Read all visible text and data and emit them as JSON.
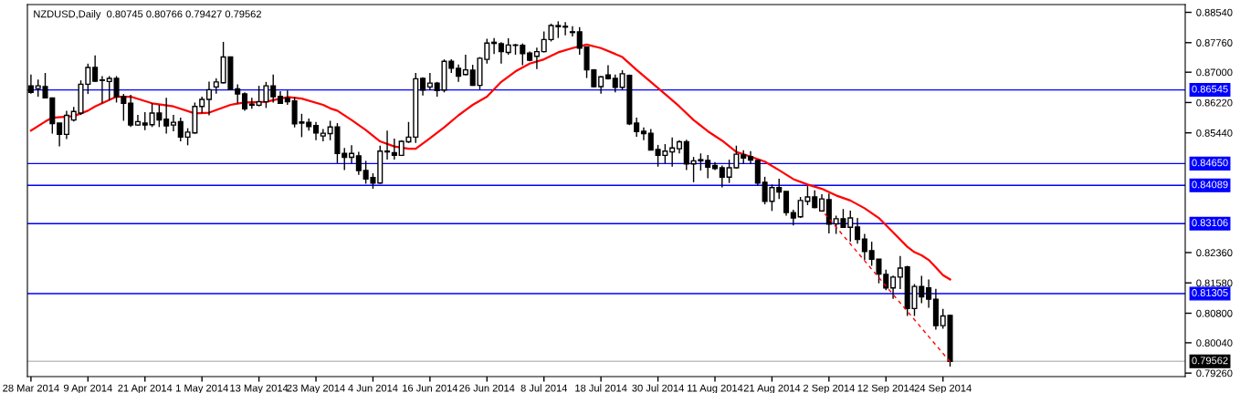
{
  "chart_data": {
    "type": "candlestick",
    "title": "NZDUSD,Daily  0.80745 0.80766 0.79427 0.79562",
    "categories": [
      "28 Mar 2014",
      null,
      null,
      null,
      null,
      null,
      null,
      null,
      "9 Apr 2014",
      null,
      null,
      null,
      null,
      null,
      null,
      null,
      "21 Apr 2014",
      null,
      null,
      null,
      null,
      null,
      null,
      null,
      "1 May 2014",
      null,
      null,
      null,
      null,
      null,
      null,
      null,
      "13 May 2014",
      null,
      null,
      null,
      null,
      null,
      null,
      null,
      "23 May 2014",
      null,
      null,
      null,
      null,
      null,
      null,
      null,
      "4 Jun 2014",
      null,
      null,
      null,
      null,
      null,
      null,
      null,
      "16 Jun 2014",
      null,
      null,
      null,
      null,
      null,
      null,
      null,
      "26 Jun 2014",
      null,
      null,
      null,
      null,
      null,
      null,
      null,
      "8 Jul 2014",
      null,
      null,
      null,
      null,
      null,
      null,
      null,
      "18 Jul 2014",
      null,
      null,
      null,
      null,
      null,
      null,
      null,
      "30 Jul 2014",
      null,
      null,
      null,
      null,
      null,
      null,
      null,
      "11 Aug 2014",
      null,
      null,
      null,
      null,
      null,
      null,
      null,
      "21 Aug 2014",
      null,
      null,
      null,
      null,
      null,
      null,
      null,
      "2 Sep 2014",
      null,
      null,
      null,
      null,
      null,
      null,
      null,
      "12 Sep 2014",
      null,
      null,
      null,
      null,
      null,
      null,
      null,
      "24 Sep 2014",
      null
    ],
    "color": "#000000",
    "ohlc": [
      [
        0.8665,
        0.8694,
        0.8645,
        0.8648
      ],
      [
        0.8658,
        0.8681,
        0.8637,
        0.8665
      ],
      [
        0.8663,
        0.8698,
        0.8633,
        0.8634
      ],
      [
        0.8634,
        0.8634,
        0.8542,
        0.8568
      ],
      [
        0.8569,
        0.8569,
        0.8509,
        0.854
      ],
      [
        0.854,
        0.8601,
        0.8528,
        0.8589
      ],
      [
        0.8577,
        0.8611,
        0.8573,
        0.8599
      ],
      [
        0.8595,
        0.8679,
        0.859,
        0.8669
      ],
      [
        0.8669,
        0.8722,
        0.8644,
        0.8712
      ],
      [
        0.8712,
        0.8743,
        0.8675,
        0.8677
      ],
      [
        0.868,
        0.869,
        0.862,
        0.8679
      ],
      [
        0.8676,
        0.869,
        0.8628,
        0.8684
      ],
      [
        0.8684,
        0.869,
        0.8622,
        0.8637
      ],
      [
        0.8637,
        0.8644,
        0.8575,
        0.862
      ],
      [
        0.862,
        0.8642,
        0.8559,
        0.8564
      ],
      [
        0.8564,
        0.859,
        0.8562,
        0.8573
      ],
      [
        0.8569,
        0.8597,
        0.8551,
        0.8564
      ],
      [
        0.8565,
        0.862,
        0.8559,
        0.8595
      ],
      [
        0.8595,
        0.8616,
        0.8559,
        0.8577
      ],
      [
        0.8579,
        0.8634,
        0.8542,
        0.8562
      ],
      [
        0.8564,
        0.859,
        0.8548,
        0.8571
      ],
      [
        0.8573,
        0.8583,
        0.8522,
        0.8533
      ],
      [
        0.8533,
        0.8556,
        0.8512,
        0.8546
      ],
      [
        0.8544,
        0.8622,
        0.8542,
        0.8612
      ],
      [
        0.8612,
        0.8637,
        0.8595,
        0.863
      ],
      [
        0.863,
        0.8676,
        0.8589,
        0.8655
      ],
      [
        0.8662,
        0.8684,
        0.8645,
        0.8675
      ],
      [
        0.8673,
        0.8778,
        0.8671,
        0.8739
      ],
      [
        0.8739,
        0.874,
        0.8654,
        0.8655
      ],
      [
        0.8657,
        0.8669,
        0.862,
        0.8644
      ],
      [
        0.8644,
        0.8648,
        0.8601,
        0.8606
      ],
      [
        0.8618,
        0.8634,
        0.8606,
        0.8615
      ],
      [
        0.8615,
        0.8665,
        0.8612,
        0.8624
      ],
      [
        0.8624,
        0.8675,
        0.8608,
        0.8665
      ],
      [
        0.8665,
        0.8694,
        0.8622,
        0.8637
      ],
      [
        0.8638,
        0.8651,
        0.8619,
        0.862
      ],
      [
        0.8633,
        0.8653,
        0.8616,
        0.8624
      ],
      [
        0.8626,
        0.8636,
        0.8558,
        0.8567
      ],
      [
        0.8572,
        0.8593,
        0.8533,
        0.8569
      ],
      [
        0.8571,
        0.8581,
        0.855,
        0.856
      ],
      [
        0.8563,
        0.8572,
        0.8525,
        0.8544
      ],
      [
        0.8536,
        0.8554,
        0.8522,
        0.8543
      ],
      [
        0.8542,
        0.8575,
        0.8525,
        0.8559
      ],
      [
        0.8559,
        0.8569,
        0.8466,
        0.8491
      ],
      [
        0.8491,
        0.8505,
        0.8448,
        0.8481
      ],
      [
        0.8481,
        0.8512,
        0.8466,
        0.8491
      ],
      [
        0.8485,
        0.8495,
        0.8436,
        0.8447
      ],
      [
        0.8447,
        0.8472,
        0.8413,
        0.8425
      ],
      [
        0.8429,
        0.844,
        0.84,
        0.8415
      ],
      [
        0.8415,
        0.8511,
        0.8413,
        0.8497
      ],
      [
        0.8497,
        0.855,
        0.8475,
        0.8495
      ],
      [
        0.8493,
        0.8529,
        0.8475,
        0.8486
      ],
      [
        0.8486,
        0.8525,
        0.8485,
        0.8522
      ],
      [
        0.8521,
        0.8572,
        0.8518,
        0.8533
      ],
      [
        0.8533,
        0.8698,
        0.8518,
        0.8683
      ],
      [
        0.8684,
        0.8687,
        0.864,
        0.8654
      ],
      [
        0.8662,
        0.8698,
        0.8654,
        0.8672
      ],
      [
        0.8672,
        0.8675,
        0.8637,
        0.8653
      ],
      [
        0.8654,
        0.8733,
        0.8648,
        0.8728
      ],
      [
        0.8728,
        0.8733,
        0.8698,
        0.871
      ],
      [
        0.871,
        0.872,
        0.8675,
        0.869
      ],
      [
        0.8694,
        0.8745,
        0.8692,
        0.8706
      ],
      [
        0.8705,
        0.8719,
        0.8665,
        0.8666
      ],
      [
        0.8666,
        0.8739,
        0.8655,
        0.8736
      ],
      [
        0.8733,
        0.8786,
        0.8722,
        0.8775
      ],
      [
        0.8777,
        0.8788,
        0.8747,
        0.8774
      ],
      [
        0.8773,
        0.8777,
        0.8722,
        0.8753
      ],
      [
        0.8751,
        0.8787,
        0.8745,
        0.877
      ],
      [
        0.877,
        0.8773,
        0.8745,
        0.8769
      ],
      [
        0.8769,
        0.8774,
        0.8718,
        0.8748
      ],
      [
        0.8749,
        0.8753,
        0.8728,
        0.8731
      ],
      [
        0.8741,
        0.8763,
        0.8708,
        0.8753
      ],
      [
        0.8753,
        0.8805,
        0.8751,
        0.8784
      ],
      [
        0.8784,
        0.8825,
        0.8779,
        0.882
      ],
      [
        0.882,
        0.8831,
        0.8788,
        0.8817
      ],
      [
        0.8818,
        0.8829,
        0.8795,
        0.8816
      ],
      [
        0.8804,
        0.8818,
        0.8792,
        0.8802
      ],
      [
        0.8804,
        0.8816,
        0.8745,
        0.8762
      ],
      [
        0.8765,
        0.8765,
        0.8685,
        0.8706
      ],
      [
        0.8706,
        0.8708,
        0.8661,
        0.8663
      ],
      [
        0.8663,
        0.869,
        0.8645,
        0.8688
      ],
      [
        0.8693,
        0.8718,
        0.8681,
        0.8683
      ],
      [
        0.8684,
        0.8694,
        0.8648,
        0.8661
      ],
      [
        0.8661,
        0.8705,
        0.8654,
        0.8696
      ],
      [
        0.8692,
        0.8694,
        0.8564,
        0.8567
      ],
      [
        0.8569,
        0.8583,
        0.8534,
        0.8547
      ],
      [
        0.8548,
        0.8558,
        0.8525,
        0.8542
      ],
      [
        0.8543,
        0.8554,
        0.8499,
        0.85
      ],
      [
        0.8501,
        0.8513,
        0.8457,
        0.8486
      ],
      [
        0.8486,
        0.8515,
        0.8465,
        0.8497
      ],
      [
        0.8495,
        0.8532,
        0.8457,
        0.8505
      ],
      [
        0.8503,
        0.8525,
        0.8491,
        0.8521
      ],
      [
        0.8521,
        0.8526,
        0.8448,
        0.8464
      ],
      [
        0.8464,
        0.8482,
        0.8417,
        0.8472
      ],
      [
        0.8475,
        0.8491,
        0.8447,
        0.8472
      ],
      [
        0.8473,
        0.8487,
        0.8427,
        0.8456
      ],
      [
        0.846,
        0.8469,
        0.8448,
        0.8452
      ],
      [
        0.8454,
        0.846,
        0.8404,
        0.843
      ],
      [
        0.843,
        0.8475,
        0.8415,
        0.8454
      ],
      [
        0.8454,
        0.8511,
        0.8452,
        0.8489
      ],
      [
        0.8487,
        0.8499,
        0.8464,
        0.8479
      ],
      [
        0.8483,
        0.8497,
        0.8464,
        0.8474
      ],
      [
        0.8473,
        0.8475,
        0.8409,
        0.8415
      ],
      [
        0.8417,
        0.8431,
        0.836,
        0.8368
      ],
      [
        0.8368,
        0.8411,
        0.8343,
        0.8403
      ],
      [
        0.8403,
        0.8426,
        0.8374,
        0.8392
      ],
      [
        0.8393,
        0.8393,
        0.8331,
        0.8339
      ],
      [
        0.8339,
        0.8346,
        0.8306,
        0.8325
      ],
      [
        0.8328,
        0.8379,
        0.8325,
        0.837
      ],
      [
        0.8368,
        0.8407,
        0.8358,
        0.8379
      ],
      [
        0.8379,
        0.8396,
        0.835,
        0.8352
      ],
      [
        0.8343,
        0.8386,
        0.8341,
        0.8374
      ],
      [
        0.8372,
        0.8388,
        0.8285,
        0.8309
      ],
      [
        0.831,
        0.8331,
        0.8284,
        0.8323
      ],
      [
        0.8323,
        0.8348,
        0.83,
        0.8301
      ],
      [
        0.8301,
        0.8344,
        0.8264,
        0.8325
      ],
      [
        0.8302,
        0.8325,
        0.8259,
        0.827
      ],
      [
        0.8271,
        0.8284,
        0.8217,
        0.8239
      ],
      [
        0.8241,
        0.8264,
        0.8202,
        0.8219
      ],
      [
        0.8219,
        0.8219,
        0.8157,
        0.8181
      ],
      [
        0.818,
        0.8192,
        0.8139,
        0.8145
      ],
      [
        0.8145,
        0.8177,
        0.8117,
        0.8173
      ],
      [
        0.8173,
        0.8227,
        0.8142,
        0.8196
      ],
      [
        0.8199,
        0.8202,
        0.8073,
        0.8092
      ],
      [
        0.8092,
        0.8155,
        0.8073,
        0.8149
      ],
      [
        0.8149,
        0.8176,
        0.8106,
        0.8122
      ],
      [
        0.8145,
        0.8167,
        0.8094,
        0.8116
      ],
      [
        0.8116,
        0.8143,
        0.8038,
        0.8048
      ],
      [
        0.8048,
        0.8091,
        0.804,
        0.8073
      ],
      [
        0.80745,
        0.80766,
        0.79427,
        0.79562
      ]
    ],
    "series": [
      {
        "type": "line",
        "color": "#ff0000",
        "values": [
          0.855,
          null,
          0.8573,
          0.8583,
          null,
          null,
          0.8587,
          null,
          0.8601,
          0.8612,
          null,
          null,
          0.8637,
          null,
          0.8637,
          null,
          null,
          0.862,
          null,
          null,
          0.8612,
          null,
          null,
          0.8594,
          null,
          0.8596,
          null,
          null,
          0.8616,
          null,
          0.8622,
          null,
          null,
          0.8624,
          null,
          0.8632,
          0.8636,
          null,
          0.8632,
          null,
          null,
          0.8616,
          0.8607,
          0.8601,
          null,
          0.8577,
          null,
          0.8551,
          null,
          0.8522,
          null,
          0.8509,
          null,
          0.8503,
          0.8503,
          null,
          0.853,
          null,
          0.8558,
          null,
          0.8589,
          null,
          0.8616,
          null,
          0.8637,
          null,
          0.8675,
          null,
          0.8702,
          null,
          0.8722,
          null,
          0.8733,
          null,
          0.8751,
          null,
          0.8762,
          null,
          0.8771,
          null,
          0.8762,
          null,
          0.8747,
          0.8739,
          null,
          0.8706,
          null,
          0.8675,
          null,
          0.8644,
          null,
          0.8612,
          null,
          0.8577,
          null,
          0.8548,
          null,
          0.8524,
          null,
          0.8495,
          null,
          0.8483,
          null,
          0.847,
          null,
          0.8448,
          null,
          0.8425,
          null,
          0.8411,
          null,
          0.84,
          null,
          0.8383,
          null,
          0.837,
          null,
          0.835,
          null,
          0.8325,
          null,
          0.8288,
          null,
          0.8251,
          0.8237,
          0.8229,
          0.8217,
          0.8198,
          0.8178,
          0.8167
        ]
      },
      {
        "type": "line",
        "color": "#ff0000",
        "line_style": "dashed",
        "values": [
          null,
          null,
          null,
          null,
          null,
          null,
          null,
          null,
          null,
          null,
          null,
          null,
          null,
          null,
          null,
          null,
          null,
          null,
          null,
          null,
          null,
          null,
          null,
          null,
          null,
          null,
          null,
          null,
          null,
          null,
          null,
          null,
          null,
          null,
          null,
          null,
          null,
          null,
          null,
          null,
          null,
          null,
          null,
          null,
          null,
          null,
          null,
          null,
          null,
          null,
          null,
          null,
          null,
          null,
          null,
          null,
          null,
          null,
          null,
          null,
          null,
          null,
          null,
          null,
          null,
          null,
          null,
          null,
          null,
          null,
          null,
          null,
          null,
          null,
          null,
          null,
          null,
          null,
          null,
          null,
          null,
          null,
          null,
          null,
          null,
          null,
          null,
          null,
          null,
          null,
          null,
          null,
          null,
          null,
          null,
          null,
          null,
          null,
          null,
          null,
          null,
          null,
          null,
          null,
          null,
          null,
          null,
          null,
          null,
          null,
          null,
          0.8345,
          null,
          null,
          null,
          null,
          null,
          null,
          null,
          null,
          null,
          null,
          null,
          null,
          null,
          null,
          null,
          null,
          null,
          0.7955
        ]
      }
    ],
    "ylim": [
      0.7917,
      0.8874
    ],
    "yticks": [
      {
        "value": 0.8854,
        "label": "0.88540"
      },
      {
        "value": 0.8776,
        "label": "0.87760"
      },
      {
        "value": 0.87,
        "label": "0.87000"
      },
      {
        "value": 0.8622,
        "label": "0.86220"
      },
      {
        "value": 0.8544,
        "label": "0.85440"
      },
      {
        "value": 0.8236,
        "label": "0.82360"
      },
      {
        "value": 0.8158,
        "label": "0.81580"
      },
      {
        "value": 0.808,
        "label": "0.80800"
      },
      {
        "value": 0.8004,
        "label": "0.80040"
      },
      {
        "value": 0.7926,
        "label": "0.79260"
      }
    ],
    "ref_lines": [
      {
        "axis": "y",
        "value": 0.86545,
        "label": "0.86545",
        "color": "#0000ff"
      },
      {
        "axis": "y",
        "value": 0.8465,
        "label": "0.84650",
        "color": "#0000ff"
      },
      {
        "axis": "y",
        "value": 0.84089,
        "label": "0.84089",
        "color": "#0000ff"
      },
      {
        "axis": "y",
        "value": 0.83106,
        "label": "0.83106",
        "color": "#0000ff"
      },
      {
        "axis": "y",
        "value": 0.81305,
        "label": "0.81305",
        "color": "#0000ff"
      },
      {
        "axis": "y",
        "value": 0.79562,
        "label": "0.79562",
        "color": "#c0c0c0"
      }
    ],
    "grid": false,
    "legend": false
  }
}
